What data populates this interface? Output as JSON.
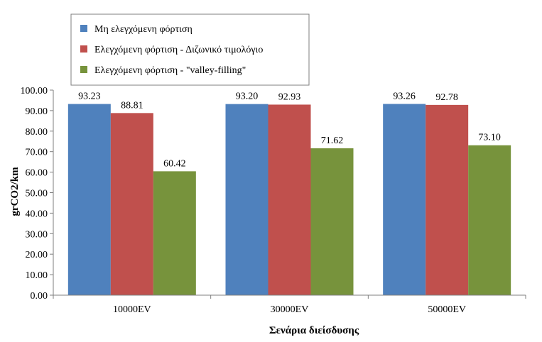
{
  "chart_data": {
    "type": "bar",
    "title": "",
    "xlabel": "Σενάρια διείσδυσης",
    "ylabel": "grCO2/km",
    "ylim": [
      0,
      100
    ],
    "yticks": [
      0,
      10,
      20,
      30,
      40,
      50,
      60,
      70,
      80,
      90,
      100
    ],
    "ytick_labels": [
      "0.00",
      "10.00",
      "20.00",
      "30.00",
      "40.00",
      "50.00",
      "60.00",
      "70.00",
      "80.00",
      "90.00",
      "100.00"
    ],
    "grid": false,
    "legend_position": "top-left",
    "categories": [
      "10000EV",
      "30000EV",
      "50000EV"
    ],
    "series": [
      {
        "name": "Μη ελεγχόμενη φόρτιση",
        "color": "#4f81bd",
        "values": [
          93.23,
          93.2,
          93.26
        ],
        "labels": [
          "93.23",
          "93.20",
          "93.26"
        ]
      },
      {
        "name": "Ελεγχόμενη φόρτιση - Διζωνικό τιμολόγιο",
        "color": "#c0504d",
        "values": [
          88.81,
          92.93,
          92.78
        ],
        "labels": [
          "88.81",
          "92.93",
          "92.78"
        ]
      },
      {
        "name": "Ελεγχόμενη φόρτιση - \"valley-filling\"",
        "color": "#77933c",
        "values": [
          60.42,
          71.62,
          73.1
        ],
        "labels": [
          "60.42",
          "71.62",
          "73.10"
        ]
      }
    ]
  }
}
